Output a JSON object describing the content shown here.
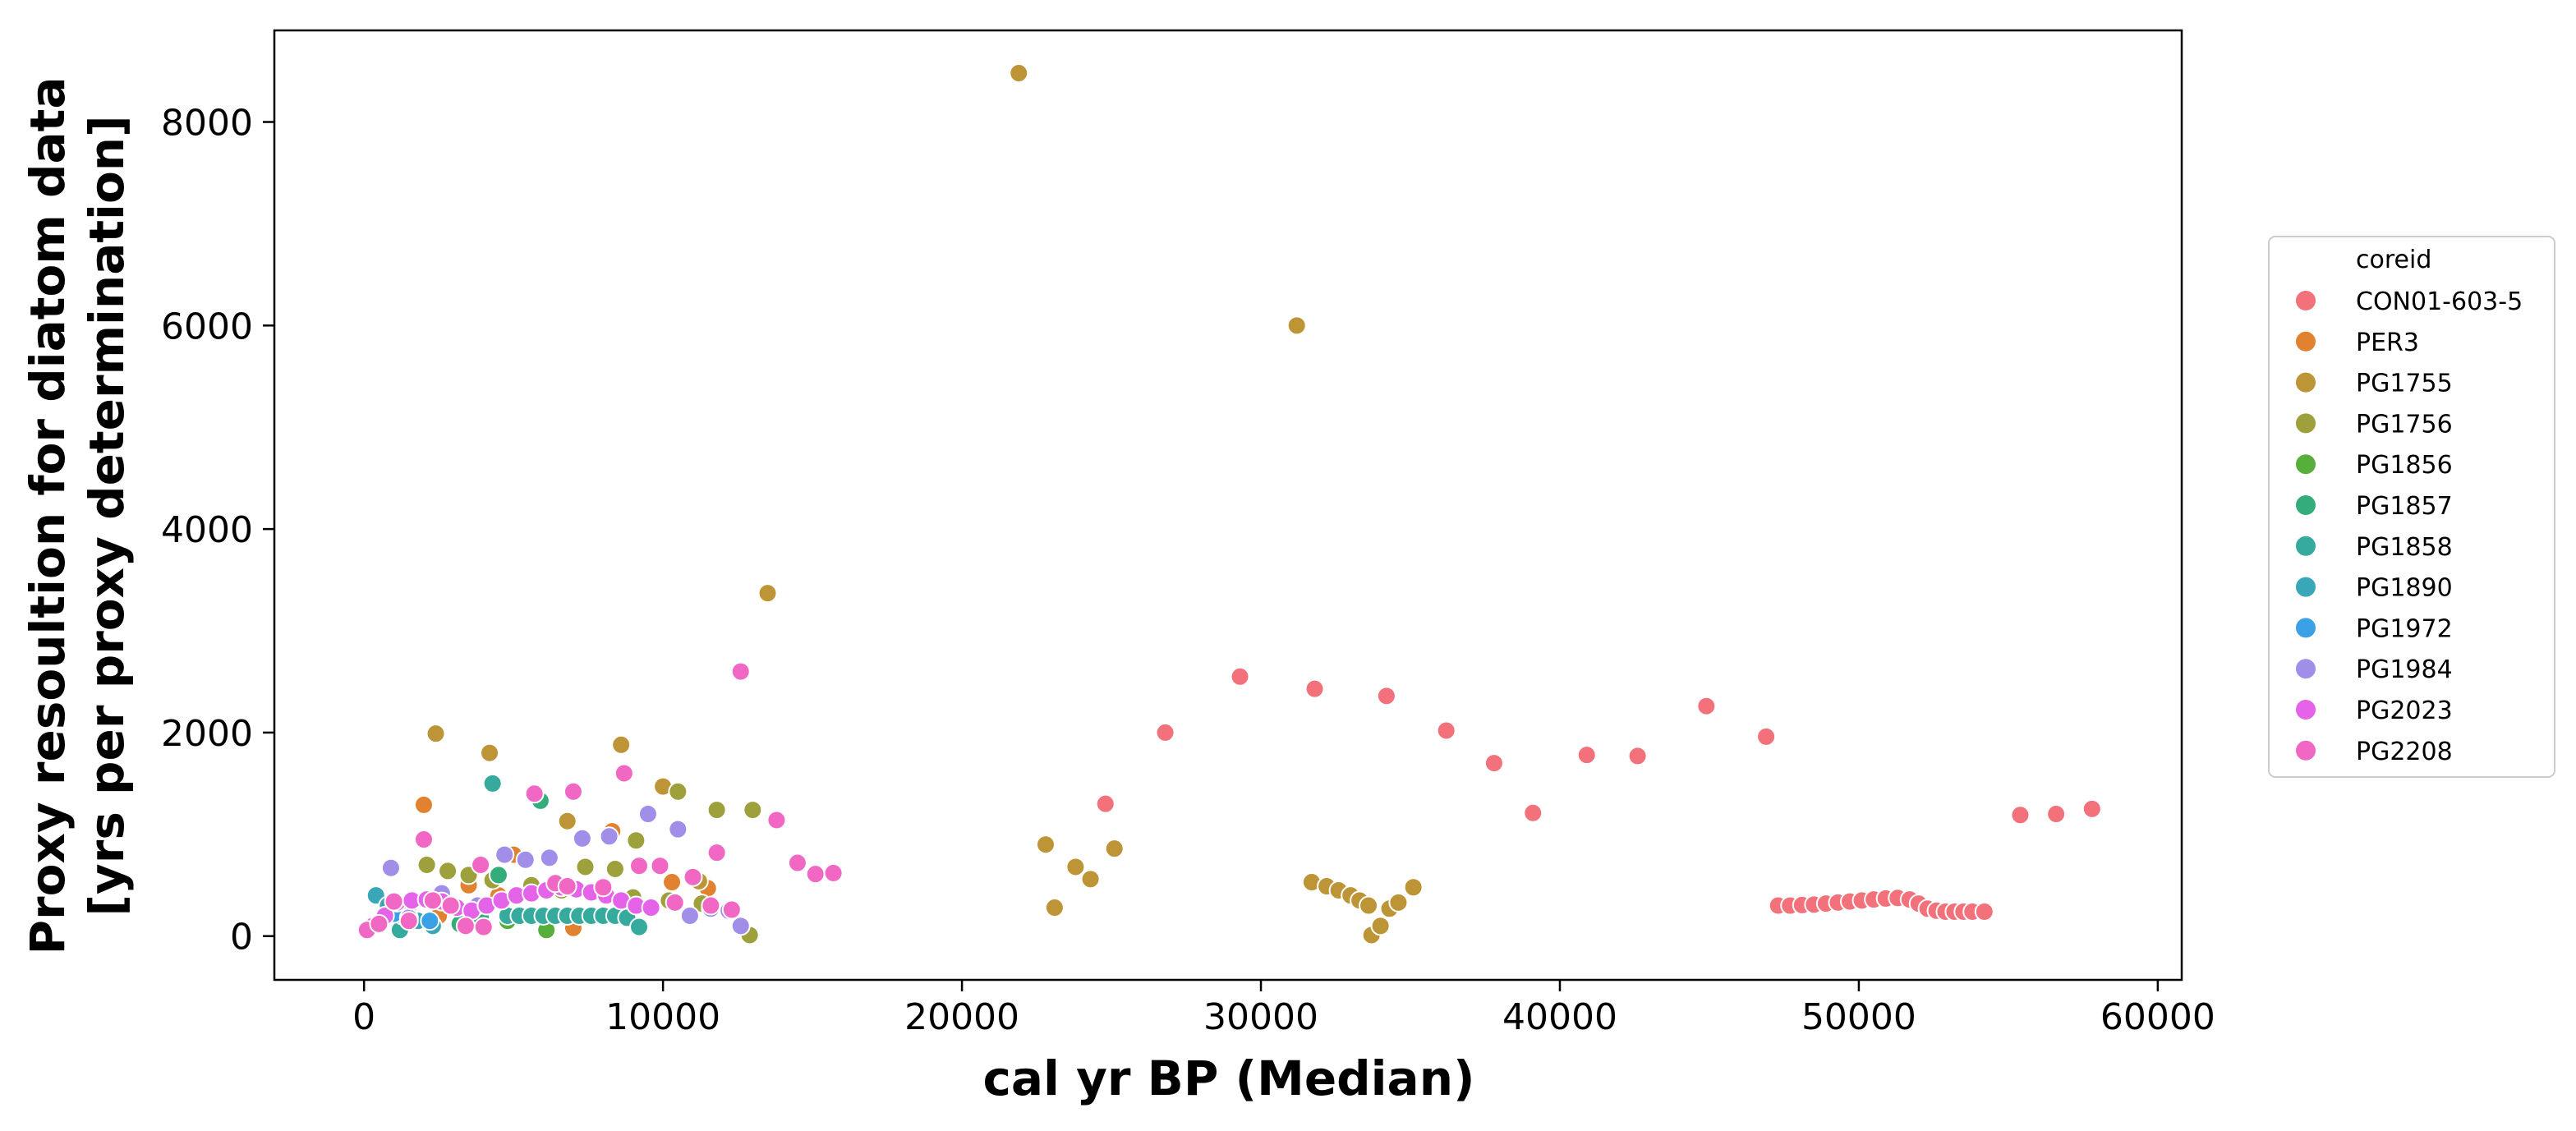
{
  "chart_data": {
    "type": "scatter",
    "title": "",
    "xlabel": "cal yr BP (Median)",
    "ylabel_lines": [
      "Proxy resoultion for diatom data",
      "[yrs per proxy determination]"
    ],
    "xlim": [
      -3000,
      60800
    ],
    "ylim": [
      -430,
      8900
    ],
    "xticks": [
      0,
      10000,
      20000,
      30000,
      40000,
      50000,
      60000
    ],
    "yticks": [
      0,
      2000,
      4000,
      6000,
      8000
    ],
    "grid": false,
    "legend": {
      "title": "coreid",
      "placement": "right"
    },
    "series": [
      {
        "name": "CON01-603-5",
        "color": "#f2717a",
        "x": [
          24800,
          26800,
          29300,
          31800,
          34200,
          36200,
          37800,
          39100,
          40900,
          42600,
          44900,
          46900,
          47300,
          47700,
          48100,
          48500,
          48900,
          49300,
          49700,
          50100,
          50500,
          50900,
          51300,
          51700,
          52000,
          52300,
          52600,
          52900,
          53200,
          53500,
          53800,
          54200,
          55400,
          56600,
          57800
        ],
        "y": [
          1300,
          2000,
          2550,
          2430,
          2360,
          2020,
          1700,
          1210,
          1780,
          1770,
          2260,
          1960,
          300,
          300,
          305,
          310,
          320,
          330,
          340,
          350,
          360,
          370,
          375,
          360,
          320,
          270,
          250,
          240,
          240,
          240,
          240,
          240,
          1190,
          1200,
          1250
        ]
      },
      {
        "name": "PER3",
        "color": "#e0822f",
        "x": [
          2000,
          3500,
          5000,
          7000,
          8300,
          10300,
          11500,
          1500,
          2500,
          4500
        ],
        "y": [
          1290,
          500,
          800,
          80,
          1030,
          530,
          470,
          300,
          200,
          400
        ]
      },
      {
        "name": "PG1755",
        "color": "#bd9436",
        "x": [
          21900,
          31200,
          13500,
          2400,
          4200,
          8600,
          6800,
          10000,
          11200,
          22800,
          23100,
          23800,
          24300,
          25100,
          31700,
          32200,
          32600,
          33000,
          33300,
          33600,
          33700,
          34000,
          34300,
          34600,
          35100
        ],
        "y": [
          8480,
          6000,
          3370,
          1990,
          1800,
          1880,
          1130,
          1470,
          540,
          900,
          280,
          680,
          560,
          860,
          530,
          490,
          450,
          400,
          350,
          300,
          10,
          100,
          270,
          330,
          480
        ]
      },
      {
        "name": "PG1756",
        "color": "#9ea03b",
        "x": [
          10500,
          11800,
          13000,
          12900,
          9100,
          8400,
          7400,
          2100,
          2800,
          3500,
          4300,
          5600,
          6600,
          7600,
          9000,
          10200,
          11300
        ],
        "y": [
          1420,
          1240,
          1240,
          10,
          940,
          660,
          680,
          700,
          640,
          600,
          550,
          500,
          450,
          420,
          380,
          350,
          320
        ]
      },
      {
        "name": "PG1856",
        "color": "#57ae3a",
        "x": [
          6100,
          4800,
          3800
        ],
        "y": [
          60,
          150,
          200
        ]
      },
      {
        "name": "PG1857",
        "color": "#35ad7a",
        "x": [
          5900,
          4500,
          3900,
          3200
        ],
        "y": [
          1330,
          600,
          180,
          120
        ]
      },
      {
        "name": "PG1858",
        "color": "#36ab9d",
        "x": [
          4300,
          1200,
          4800,
          5200,
          5600,
          6000,
          6400,
          6800,
          7200,
          7600,
          8000,
          8400,
          8800,
          9200
        ],
        "y": [
          1500,
          60,
          200,
          200,
          200,
          200,
          200,
          200,
          200,
          200,
          200,
          200,
          180,
          90
        ]
      },
      {
        "name": "PG1890",
        "color": "#39a7b8",
        "x": [
          400,
          800,
          1300,
          1800,
          2300
        ],
        "y": [
          400,
          300,
          200,
          150,
          100
        ]
      },
      {
        "name": "PG1972",
        "color": "#3aa1e6",
        "x": [
          1000,
          2200
        ],
        "y": [
          220,
          150
        ]
      },
      {
        "name": "PG1984",
        "color": "#a08ee8",
        "x": [
          900,
          4700,
          5400,
          6200,
          7300,
          8200,
          9500,
          10500,
          1500,
          2600,
          3800,
          11600,
          12200,
          12600,
          10900
        ],
        "y": [
          670,
          800,
          750,
          770,
          960,
          980,
          1200,
          1050,
          180,
          420,
          300,
          270,
          250,
          100,
          200
        ]
      },
      {
        "name": "PG2023",
        "color": "#e463e8",
        "x": [
          300,
          700,
          1100,
          1600,
          2100,
          2600,
          3100,
          3600,
          4100,
          4600,
          5100,
          5600,
          6100,
          6600,
          7100,
          7600,
          8100,
          8600,
          9100,
          9600
        ],
        "y": [
          100,
          200,
          330,
          350,
          360,
          340,
          280,
          250,
          300,
          350,
          400,
          420,
          450,
          480,
          460,
          430,
          400,
          350,
          300,
          280
        ]
      },
      {
        "name": "PG2208",
        "color": "#f068c4",
        "x": [
          12600,
          13800,
          14500,
          15100,
          15700,
          11800,
          8700,
          7000,
          5700,
          2000,
          9200,
          9900,
          10400,
          11000,
          11600,
          12300,
          100,
          500,
          1000,
          1500,
          2300,
          2900,
          3400,
          4000,
          3900,
          6400,
          6800,
          8000
        ],
        "y": [
          2600,
          1140,
          720,
          610,
          620,
          820,
          1600,
          1420,
          1400,
          950,
          690,
          690,
          330,
          580,
          300,
          260,
          60,
          120,
          340,
          150,
          350,
          300,
          100,
          90,
          700,
          520,
          490,
          480
        ]
      }
    ]
  }
}
